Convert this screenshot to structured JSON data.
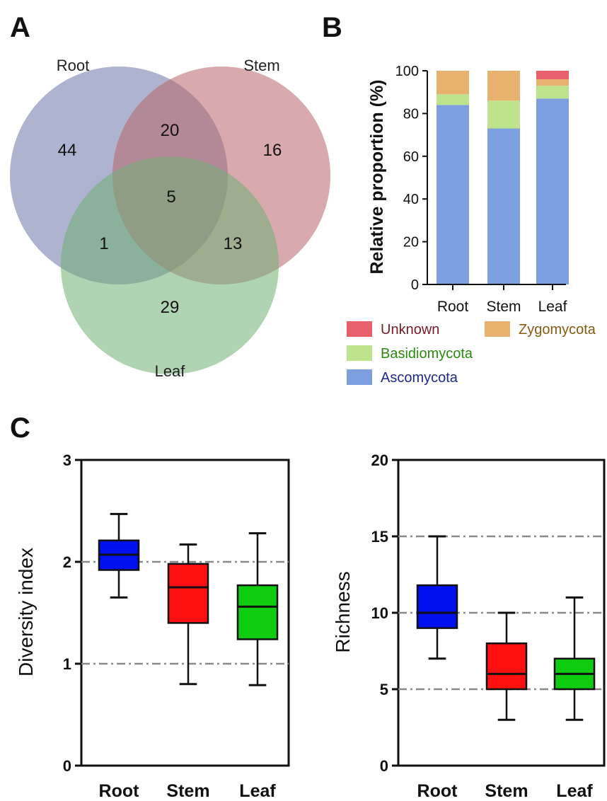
{
  "panel_labels": {
    "a": "A",
    "b": "B",
    "c": "C"
  },
  "colors": {
    "root_circle": "#6b74a8",
    "stem_circle": "#b8646a",
    "leaf_circle": "#6fae72",
    "unknown": "#e8606a",
    "zygomycota": "#e8b26e",
    "basidiomycota": "#bde38c",
    "ascomycota": "#7d9edf",
    "root_box": "#0010ee",
    "stem_box": "#ff1010",
    "leaf_box": "#10cc10"
  },
  "chart_data": [
    {
      "type": "venn",
      "sets": [
        "Root",
        "Stem",
        "Leaf"
      ],
      "regions": {
        "root_only": "44",
        "stem_only": "16",
        "leaf_only": "29",
        "root_stem": "20",
        "root_leaf": "1",
        "stem_leaf": "13",
        "all": "5"
      }
    },
    {
      "type": "bar",
      "stacked": true,
      "categories": [
        "Root",
        "Stem",
        "Leaf"
      ],
      "ylabel": "Relative proportion (%)",
      "ylim": [
        0,
        100
      ],
      "yticks": [
        "0",
        "20",
        "40",
        "60",
        "80",
        "100"
      ],
      "series": [
        {
          "name": "Ascomycota",
          "values": [
            84,
            73,
            87
          ]
        },
        {
          "name": "Basidiomycota",
          "values": [
            5,
            13,
            6
          ]
        },
        {
          "name": "Zygomycota",
          "values": [
            11,
            14,
            3
          ]
        },
        {
          "name": "Unknown",
          "values": [
            0,
            0,
            4
          ]
        }
      ],
      "legend_order": [
        "Unknown",
        "Zygomycota",
        "Basidiomycota",
        "Ascomycota"
      ],
      "legend_placement": "bottom"
    },
    {
      "type": "box",
      "categories": [
        "Root",
        "Stem",
        "Leaf"
      ],
      "ylabel": "Diversity index",
      "ylim": [
        0,
        3
      ],
      "yticks": [
        "0",
        "1",
        "2",
        "3"
      ],
      "reference_lines": [
        1,
        2
      ],
      "boxes": [
        {
          "min": 1.65,
          "q1": 1.92,
          "median": 2.07,
          "q3": 2.21,
          "max": 2.47
        },
        {
          "min": 0.8,
          "q1": 1.4,
          "median": 1.75,
          "q3": 1.98,
          "max": 2.17
        },
        {
          "min": 0.79,
          "q1": 1.24,
          "median": 1.56,
          "q3": 1.77,
          "max": 2.28
        }
      ]
    },
    {
      "type": "box",
      "categories": [
        "Root",
        "Stem",
        "Leaf"
      ],
      "ylabel": "Richness",
      "ylim": [
        0,
        20
      ],
      "yticks": [
        "0",
        "5",
        "10",
        "15",
        "20"
      ],
      "reference_lines": [
        5,
        10,
        15
      ],
      "boxes": [
        {
          "min": 7,
          "q1": 9,
          "median": 10,
          "q3": 11.8,
          "max": 15
        },
        {
          "min": 3,
          "q1": 5,
          "median": 6,
          "q3": 8,
          "max": 10
        },
        {
          "min": 3,
          "q1": 5,
          "median": 6,
          "q3": 7,
          "max": 11
        }
      ]
    }
  ]
}
